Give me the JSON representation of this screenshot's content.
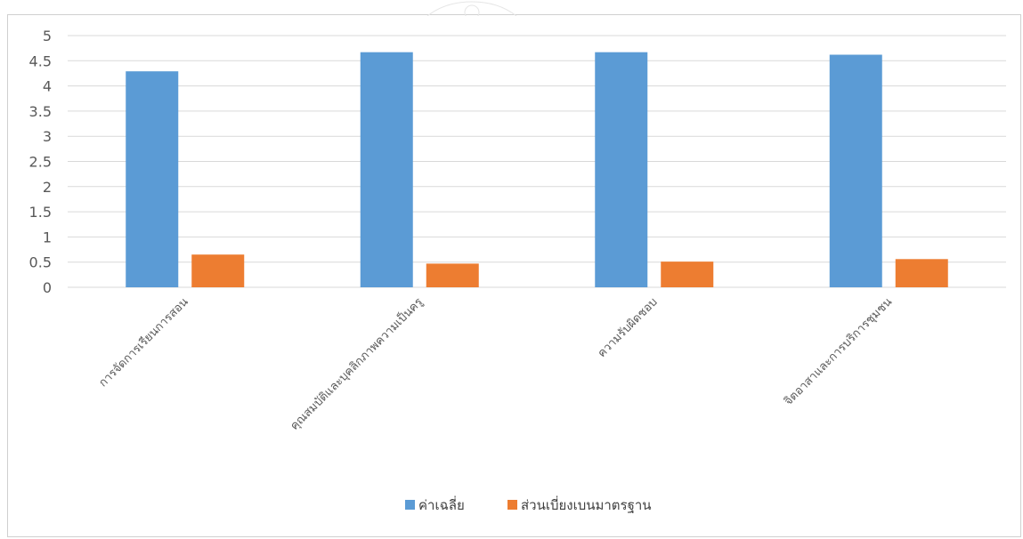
{
  "chart_data": {
    "type": "bar",
    "categories": [
      "การจัดการเรียนการสอน",
      "คุณสมบัติและบุคลิกภาพความเป็นครู",
      "ความรับผิดชอบ",
      "จิตอาสาและการบริการชุมชน"
    ],
    "series": [
      {
        "name": "ค่าเฉลี่ย",
        "values": [
          4.29,
          4.67,
          4.67,
          4.62
        ],
        "color": "#5B9BD5"
      },
      {
        "name": "ส่วนเบี่ยงเบนมาตรฐาน",
        "values": [
          0.65,
          0.47,
          0.51,
          0.56
        ],
        "color": "#ED7D31"
      }
    ],
    "y_ticks": [
      "0",
      "0.5",
      "1",
      "1.5",
      "2",
      "2.5",
      "3",
      "3.5",
      "4",
      "4.5",
      "5"
    ],
    "ylim": [
      0,
      5
    ],
    "grid": true,
    "legend_position": "bottom",
    "gridline_color": "#d9d9d9"
  }
}
